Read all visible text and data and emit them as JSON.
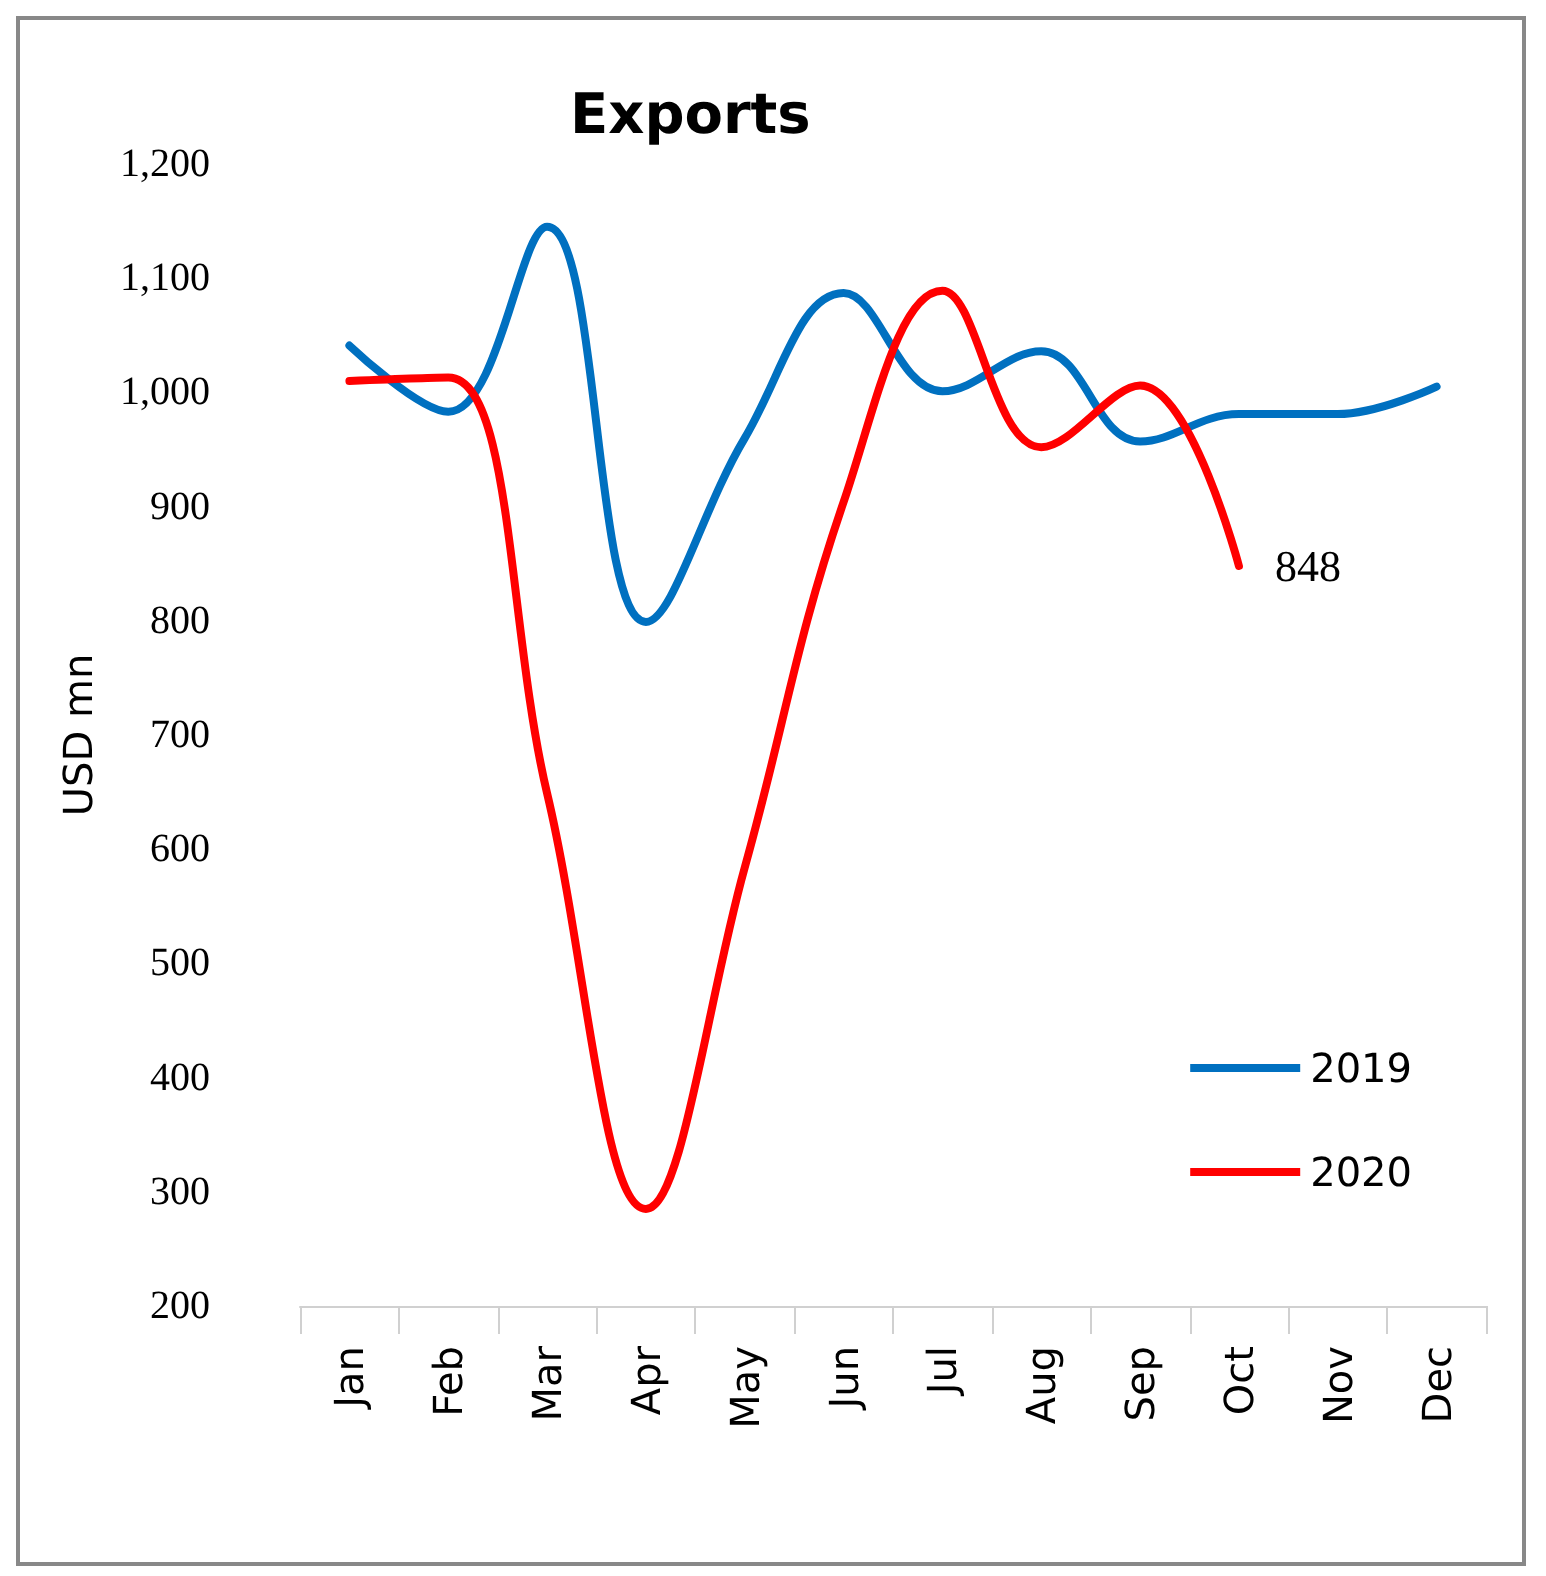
{
  "chart_data": {
    "type": "line",
    "title": "Exports",
    "ylabel": "USD mn",
    "categories": [
      "Jan",
      "Feb",
      "Mar",
      "Apr",
      "May",
      "Jun",
      "Jul",
      "Aug",
      "Sep",
      "Oct",
      "Nov",
      "Dec"
    ],
    "series": [
      {
        "name": "2019",
        "color": "#0070c0",
        "values": [
          1041,
          983,
          1145,
          799,
          960,
          1087,
          1001,
          1036,
          957,
          981,
          981,
          1005
        ]
      },
      {
        "name": "2020",
        "color": "#ff0000",
        "values": [
          1010,
          1013,
          649,
          285,
          584,
          904,
          1089,
          952,
          1006,
          848,
          null,
          null
        ],
        "value_labels": [
          null,
          null,
          null,
          null,
          null,
          null,
          null,
          null,
          null,
          "848",
          null,
          null
        ]
      }
    ],
    "ylim": [
      200,
      1200
    ],
    "yticks": [
      {
        "value": 200,
        "label": "200"
      },
      {
        "value": 300,
        "label": "300"
      },
      {
        "value": 400,
        "label": "400"
      },
      {
        "value": 500,
        "label": "500"
      },
      {
        "value": 600,
        "label": "600"
      },
      {
        "value": 700,
        "label": "700"
      },
      {
        "value": 800,
        "label": "800"
      },
      {
        "value": 900,
        "label": "900"
      },
      {
        "value": 1000,
        "label": "1,000"
      },
      {
        "value": 1100,
        "label": "1,100"
      },
      {
        "value": 1200,
        "label": "1,200"
      }
    ],
    "grid": false,
    "legend": "bottom right",
    "marker": "none",
    "line_style": "solid"
  }
}
